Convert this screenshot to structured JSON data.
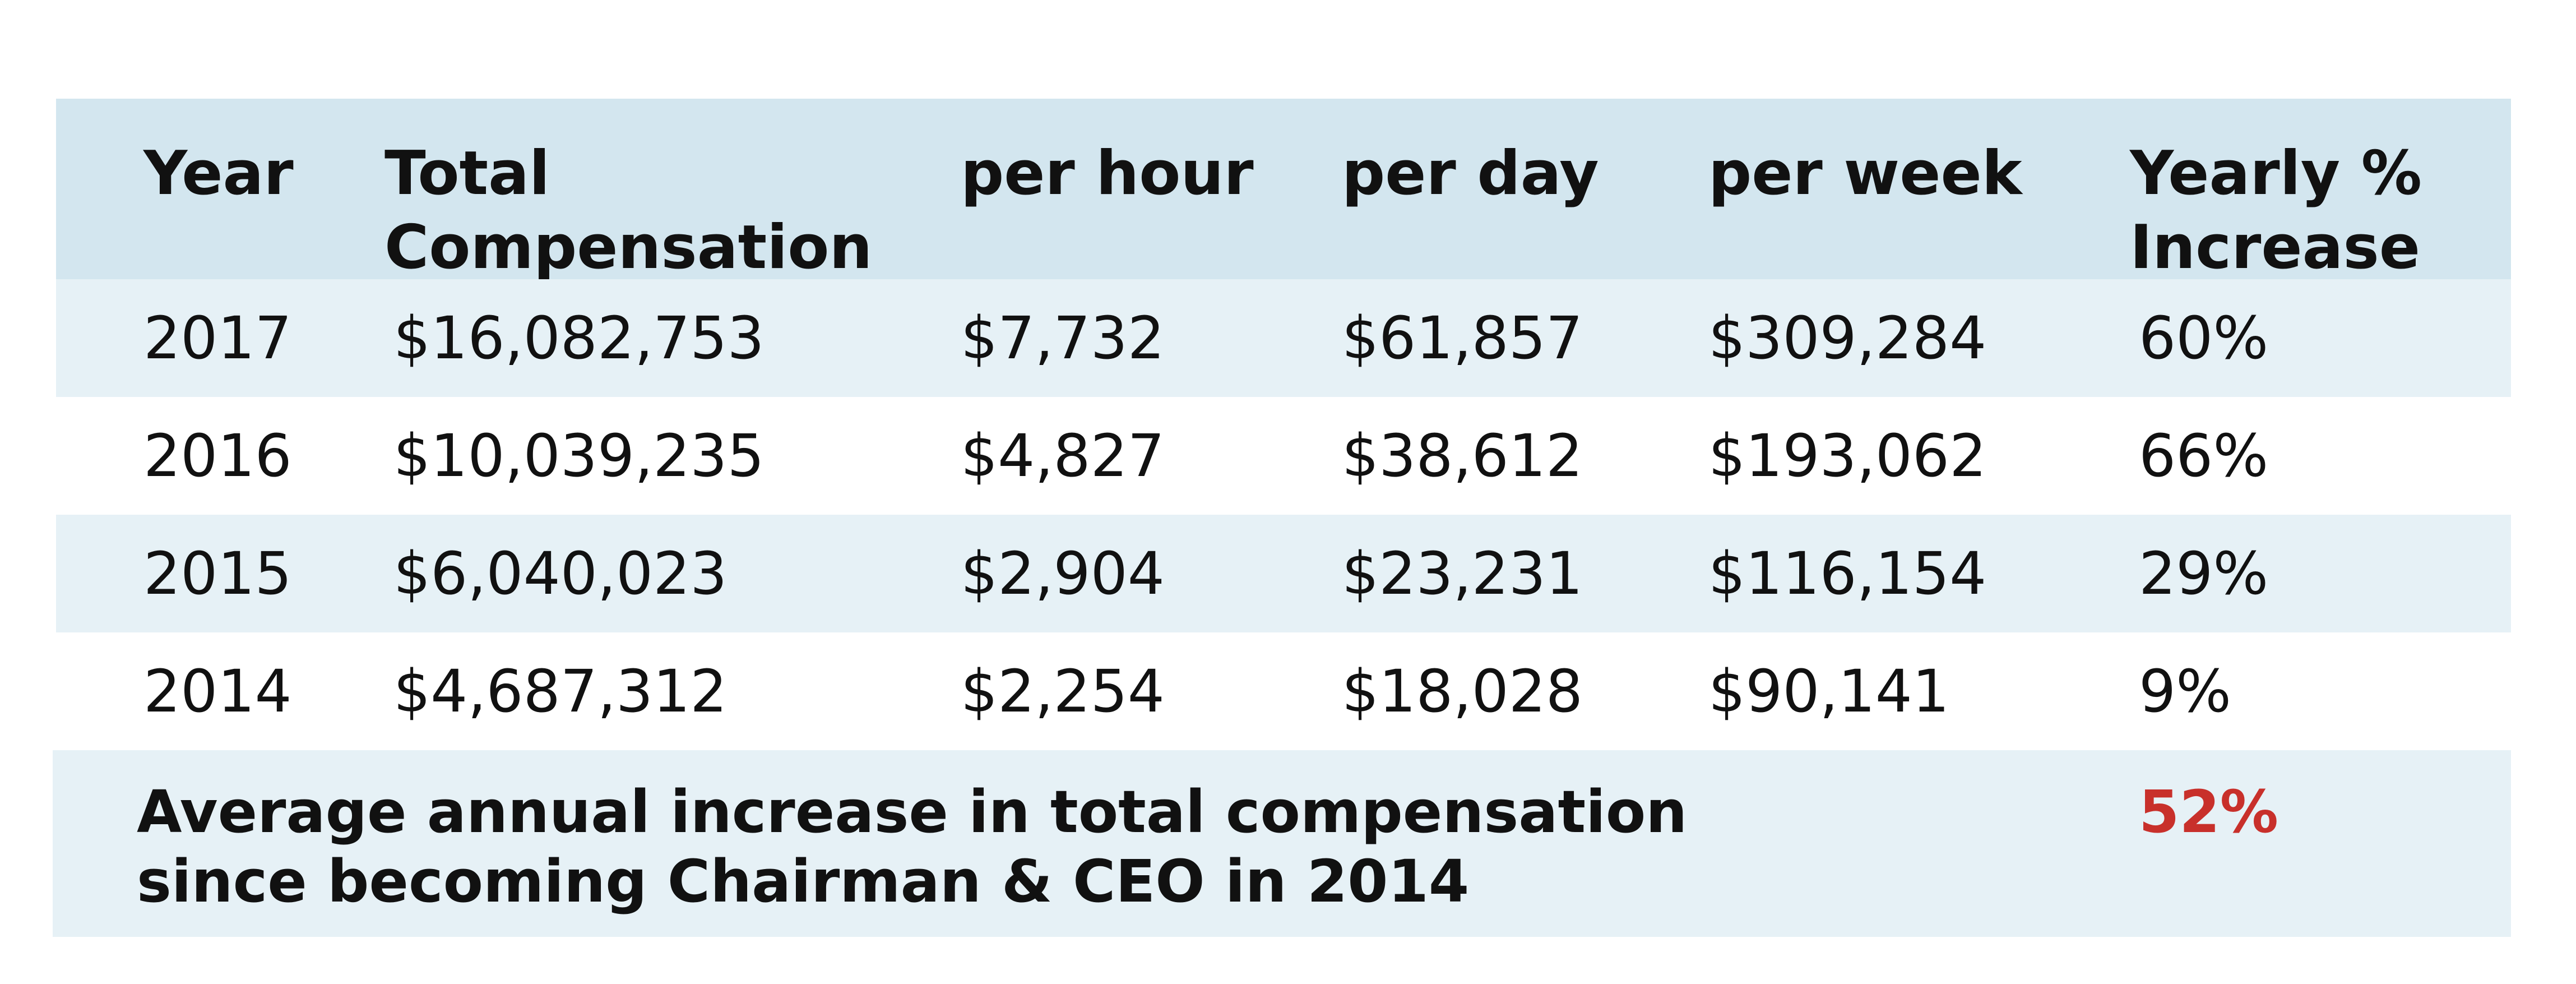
{
  "chart_data": {
    "type": "table",
    "columns": [
      "Year",
      "Total Compensation",
      "per hour",
      "per day",
      "per week",
      "Yearly % Increase"
    ],
    "rows": [
      [
        "2017",
        "$16,082,753",
        "$7,732",
        "$61,857",
        "$309,284",
        "60%"
      ],
      [
        "2016",
        "$10,039,235",
        "$4,827",
        "$38,612",
        "$193,062",
        "66%"
      ],
      [
        "2015",
        "$6,040,023",
        "$2,904",
        "$23,231",
        "$116,154",
        "29%"
      ],
      [
        "2014",
        "$4,687,312",
        "$2,254",
        "$18,028",
        "$90,141",
        "9%"
      ]
    ],
    "footer": {
      "label": "Average annual increase in total compensation since becoming Chairman & CEO in 2014",
      "value": "52%"
    }
  },
  "colors": {
    "header_bg": "#d3e6ef",
    "shaded_row_bg": "#e6f1f6",
    "highlight_value": "#c8302b"
  }
}
